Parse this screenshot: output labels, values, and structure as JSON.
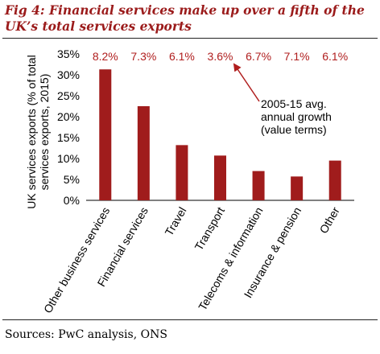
{
  "figure": {
    "title": "Fig 4: Financial services make up over a fifth of the UK’s total services exports",
    "source": "Sources: PwC analysis, ONS"
  },
  "chart_data": {
    "type": "bar",
    "categories": [
      "Other business services",
      "Financial services",
      "Travel",
      "Transport",
      "Telecoms & information",
      "Insurance & pension",
      "Other"
    ],
    "values": [
      31.3,
      22.5,
      13.2,
      10.7,
      7.0,
      5.7,
      9.5
    ],
    "growth_labels": [
      "8.2%",
      "7.3%",
      "6.1%",
      "3.6%",
      "6.7%",
      "7.1%",
      "6.1%"
    ],
    "ylabel_lines": [
      "UK services exports (% of total",
      "services exports, 2015)"
    ],
    "ylim": [
      0,
      35
    ],
    "yticks": [
      0,
      5,
      10,
      15,
      20,
      25,
      30,
      35
    ],
    "ytick_labels": [
      "0%",
      "5%",
      "10%",
      "15%",
      "20%",
      "25%",
      "30%",
      "35%"
    ],
    "annotation_lines": [
      "2005-15 avg.",
      "annual growth",
      "(value terms)"
    ],
    "bar_color": "#a01c1c",
    "growth_color": "#b01e1e",
    "grid": false
  }
}
